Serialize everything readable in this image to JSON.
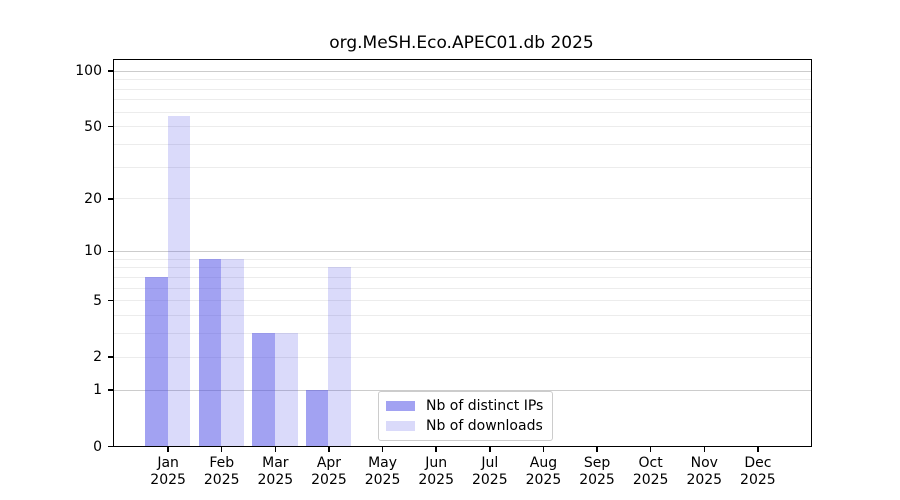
{
  "chart_data": {
    "type": "bar",
    "title": "org.MeSH.Eco.APEC01.db 2025",
    "categories": [
      "Jan",
      "Feb",
      "Mar",
      "Apr",
      "May",
      "Jun",
      "Jul",
      "Aug",
      "Sep",
      "Oct",
      "Nov",
      "Dec"
    ],
    "year": "2025",
    "series": [
      {
        "name": "Nb of distinct IPs",
        "color": "rgba(70,70,230,0.5)",
        "values": [
          7,
          9,
          3,
          1,
          0,
          0,
          0,
          0,
          0,
          0,
          0,
          0
        ]
      },
      {
        "name": "Nb of downloads",
        "color": "rgba(70,70,230,0.2)",
        "values": [
          57,
          9,
          3,
          8,
          0,
          0,
          0,
          0,
          0,
          0,
          0,
          0
        ]
      }
    ],
    "y_scale": "log1p",
    "y_axis_max": 114,
    "y_ticks_labeled": [
      0,
      1,
      2,
      5,
      10,
      20,
      50,
      100
    ],
    "y_gridlines_major": [
      1,
      10,
      100
    ],
    "y_gridlines_minor": [
      2,
      3,
      4,
      5,
      6,
      7,
      8,
      9,
      20,
      30,
      40,
      50,
      60,
      70,
      80,
      90
    ],
    "grid": true,
    "legend_position": "lower center",
    "colors": {
      "major_grid": "#cccccc",
      "minor_grid": "#ececec",
      "axis": "#000000",
      "text": "#000000",
      "legend_border": "#cccccc",
      "background": "#ffffff"
    }
  }
}
